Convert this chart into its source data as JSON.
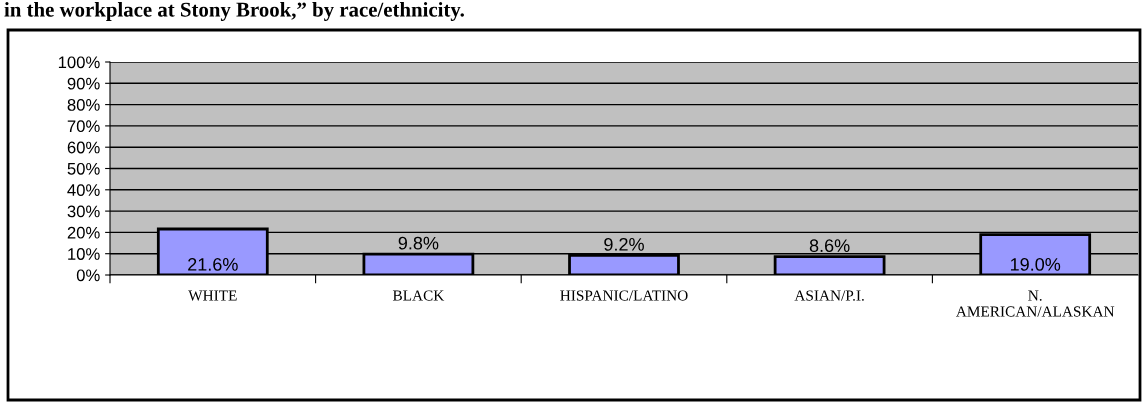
{
  "chart_data": {
    "type": "bar",
    "title": "in the workplace at Stony Brook,” by race/ethnicity.",
    "categories": [
      "WHITE",
      "BLACK",
      "HISPANIC/LATINO",
      "ASIAN/P.I.",
      "N.\nAMERICAN/ALASKAN"
    ],
    "values": [
      21.6,
      9.8,
      9.2,
      8.6,
      19.0
    ],
    "value_labels": [
      "21.6%",
      "9.8%",
      "9.2%",
      "8.6%",
      "19.0%"
    ],
    "color": "#9999ff",
    "ylim": [
      0,
      100
    ],
    "yticks": [
      {
        "value": 0,
        "label": "0%"
      },
      {
        "value": 10,
        "label": "10%"
      },
      {
        "value": 20,
        "label": "20%"
      },
      {
        "value": 30,
        "label": "30%"
      },
      {
        "value": 40,
        "label": "40%"
      },
      {
        "value": 50,
        "label": "50%"
      },
      {
        "value": 60,
        "label": "60%"
      },
      {
        "value": 70,
        "label": "70%"
      },
      {
        "value": 80,
        "label": "80%"
      },
      {
        "value": 90,
        "label": "90%"
      },
      {
        "value": 100,
        "label": "100%"
      }
    ],
    "grid": "y",
    "legend": false
  }
}
